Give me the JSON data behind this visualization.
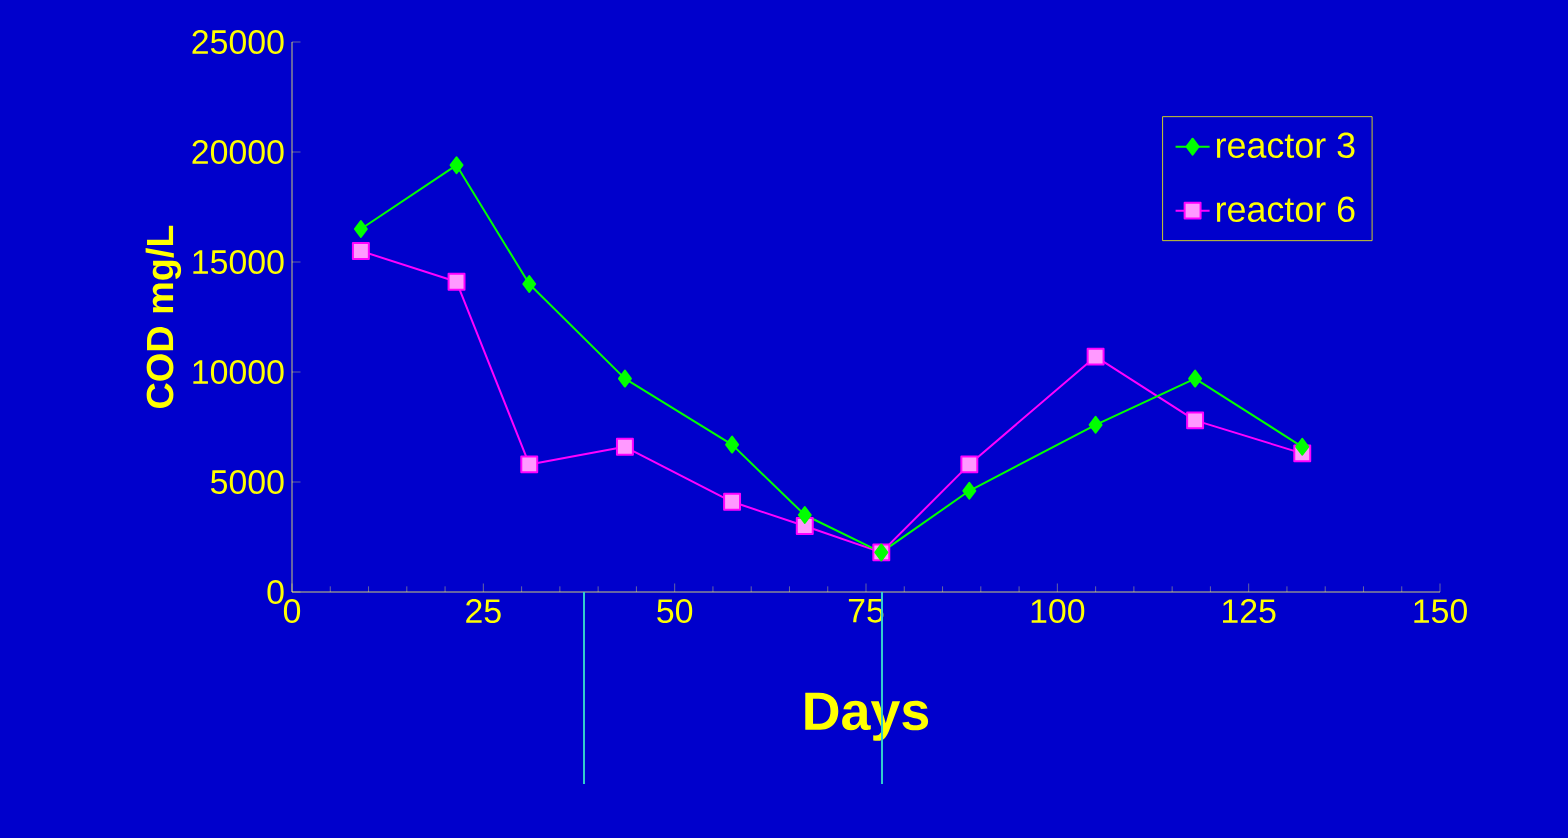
{
  "chart_data": {
    "type": "line",
    "xlabel": "Days",
    "ylabel": "COD mg/L",
    "x": [
      9,
      21.5,
      31,
      43.5,
      57.5,
      67,
      77,
      88.5,
      105,
      118,
      132
    ],
    "series": [
      {
        "name": "reactor 3",
        "color": "#00ff00",
        "marker": "diamond",
        "values": [
          16500,
          19400,
          14000,
          9700,
          6700,
          3500,
          1800,
          4600,
          7600,
          9700,
          6600
        ]
      },
      {
        "name": "reactor 6",
        "color": "#ff00ff",
        "marker": "square",
        "values": [
          15500,
          14100,
          5800,
          6600,
          4100,
          3000,
          1800,
          5800,
          10700,
          7800,
          6300
        ]
      }
    ],
    "xlim": [
      0,
      150
    ],
    "xticks": [
      0,
      25,
      50,
      75,
      100,
      125,
      150
    ],
    "ylim": [
      0,
      25000
    ],
    "yticks": [
      0,
      5000,
      10000,
      15000,
      20000,
      25000
    ],
    "grid": false,
    "legend": "top right",
    "line_style": "solid"
  }
}
